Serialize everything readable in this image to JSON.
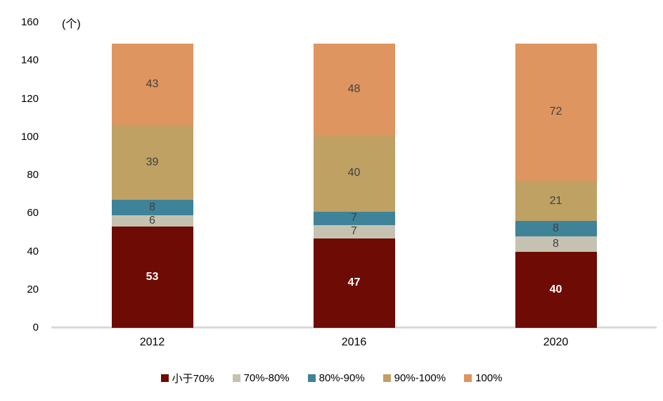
{
  "chart_data": {
    "type": "bar",
    "stacked": true,
    "title": "",
    "unit_label": "(个)",
    "categories": [
      "2012",
      "2016",
      "2020"
    ],
    "series": [
      {
        "name": "小于70%",
        "color": "#6E0B04",
        "values": [
          53,
          47,
          40
        ],
        "label_color": "#FFFFFF",
        "label_bold": true
      },
      {
        "name": "70%-80%",
        "color": "#C6C2B2",
        "values": [
          6,
          7,
          8
        ],
        "label_color": "#404040",
        "label_bold": false
      },
      {
        "name": "80%-90%",
        "color": "#3E8397",
        "values": [
          8,
          7,
          8
        ],
        "label_color": "#404040",
        "label_bold": false
      },
      {
        "name": "90%-100%",
        "color": "#BFA164",
        "values": [
          39,
          40,
          21
        ],
        "label_color": "#404040",
        "label_bold": false
      },
      {
        "name": "100%",
        "color": "#DE9560",
        "values": [
          43,
          48,
          72
        ],
        "label_color": "#404040",
        "label_bold": false
      }
    ],
    "totals": [
      149,
      149,
      149
    ],
    "y_ticks": [
      0,
      20,
      40,
      60,
      80,
      100,
      120,
      140,
      160
    ],
    "ylim": [
      0,
      160
    ],
    "grid": false,
    "legend_position": "bottom",
    "axis_line_color": "#D9D9D9",
    "tick_text_color": "#000000"
  }
}
